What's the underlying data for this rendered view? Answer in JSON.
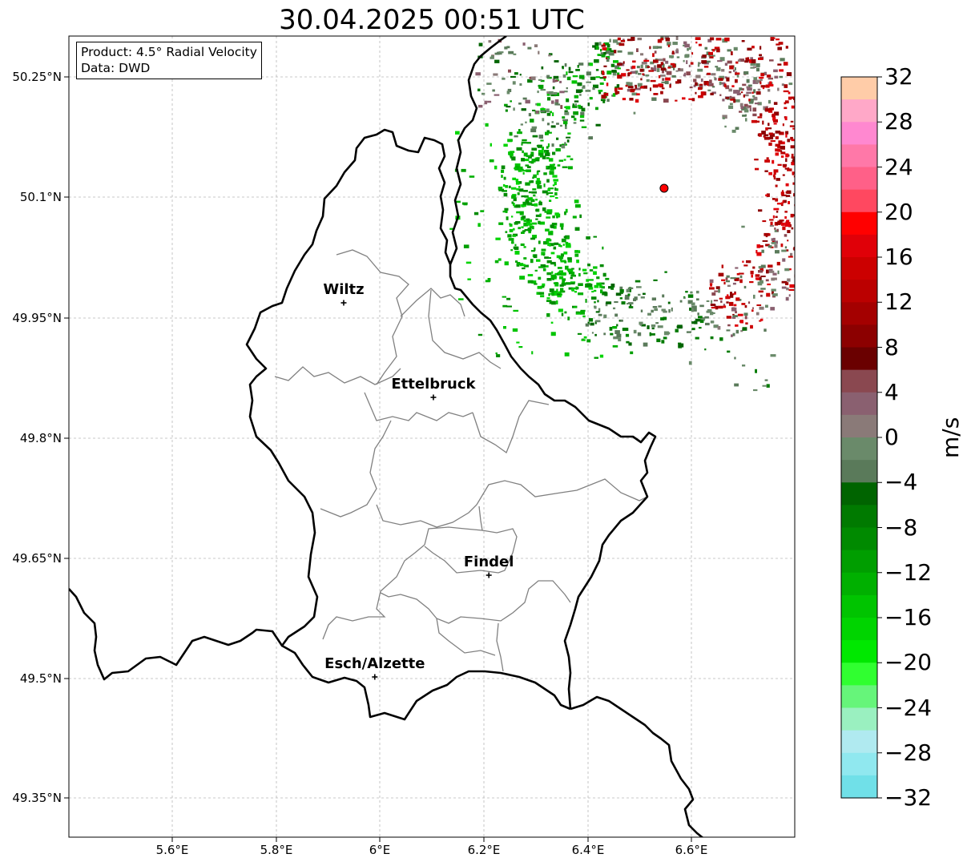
{
  "title": "30.04.2025 00:51 UTC",
  "info": {
    "product": "Product: 4.5° Radial Velocity",
    "source": "Data: DWD"
  },
  "map": {
    "extent": {
      "lon": [
        5.4,
        6.8
      ],
      "lat": [
        49.3,
        50.3
      ]
    },
    "lat_ticks": [
      {
        "value": 50.25,
        "label": "50.25°N"
      },
      {
        "value": 50.1,
        "label": "50.1°N"
      },
      {
        "value": 49.95,
        "label": "49.95°N"
      },
      {
        "value": 49.8,
        "label": "49.8°N"
      },
      {
        "value": 49.65,
        "label": "49.65°N"
      },
      {
        "value": 49.5,
        "label": "49.5°N"
      },
      {
        "value": 49.35,
        "label": "49.35°N"
      }
    ],
    "lon_ticks": [
      {
        "value": 5.6,
        "label": "5.6°E"
      },
      {
        "value": 5.8,
        "label": "5.8°E"
      },
      {
        "value": 6.0,
        "label": "6°E"
      },
      {
        "value": 6.2,
        "label": "6.2°E"
      },
      {
        "value": 6.4,
        "label": "6.4°E"
      },
      {
        "value": 6.6,
        "label": "6.6°E"
      }
    ],
    "grid": true,
    "cities": [
      {
        "name": "Wiltz",
        "lon": 5.93,
        "lat": 49.967
      },
      {
        "name": "Ettelbruck",
        "lon": 6.103,
        "lat": 49.849
      },
      {
        "name": "Findel",
        "lon": 6.21,
        "lat": 49.627
      },
      {
        "name": "Esch/Alzette",
        "lon": 5.99,
        "lat": 49.5
      }
    ],
    "radar_site": {
      "lon": 6.548,
      "lat": 50.11,
      "color": "#ff0000"
    }
  },
  "colorbar": {
    "unit": "m/s",
    "min": -32,
    "max": 32,
    "ticks": [
      {
        "value": 32,
        "label": "32"
      },
      {
        "value": 28,
        "label": "28"
      },
      {
        "value": 24,
        "label": "24"
      },
      {
        "value": 20,
        "label": "20"
      },
      {
        "value": 16,
        "label": "16"
      },
      {
        "value": 12,
        "label": "12"
      },
      {
        "value": 8,
        "label": "8"
      },
      {
        "value": 4,
        "label": "4"
      },
      {
        "value": 0,
        "label": "0"
      },
      {
        "value": -4,
        "label": "−4"
      },
      {
        "value": -8,
        "label": "−8"
      },
      {
        "value": -12,
        "label": "−12"
      },
      {
        "value": -16,
        "label": "−16"
      },
      {
        "value": -20,
        "label": "−20"
      },
      {
        "value": -24,
        "label": "−24"
      },
      {
        "value": -28,
        "label": "−28"
      },
      {
        "value": -32,
        "label": "−32"
      }
    ],
    "colors_top_to_bottom": [
      "#ffcca8",
      "#ffa8c8",
      "#ff88d0",
      "#ff78a8",
      "#ff6088",
      "#ff4860",
      "#ff0000",
      "#e00008",
      "#cc0000",
      "#bb0000",
      "#a40000",
      "#8c0000",
      "#6a0000",
      "#8a4850",
      "#8a6070",
      "#8a7a78",
      "#6a8a6a",
      "#5a7a5a",
      "#006400",
      "#007a00",
      "#008a00",
      "#009e00",
      "#00b000",
      "#00c400",
      "#00d400",
      "#00e800",
      "#30ff30",
      "#66f57a",
      "#9af0c0",
      "#b0eaf0",
      "#90e8ef",
      "#70e0e8"
    ]
  }
}
